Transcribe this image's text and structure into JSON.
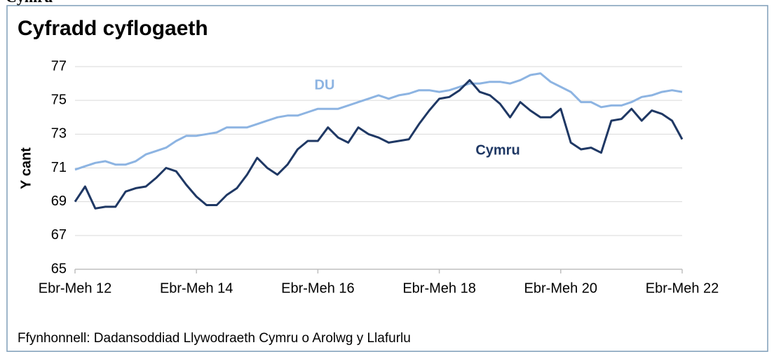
{
  "header": "Cymru",
  "chart_data": {
    "type": "line",
    "title": "Cyfradd cyflogaeth",
    "y_label": "Y cant",
    "source": "Ffynhonnell: Dadansoddiad Llywodraeth Cymru o Arolwg y Llafurlu",
    "categories": [
      "Ebr-Meh 12",
      null,
      null,
      null,
      null,
      null,
      null,
      null,
      null,
      null,
      null,
      null,
      "Ebr-Meh 14",
      null,
      null,
      null,
      null,
      null,
      null,
      null,
      null,
      null,
      null,
      null,
      "Ebr-Meh 16",
      null,
      null,
      null,
      null,
      null,
      null,
      null,
      null,
      null,
      null,
      null,
      "Ebr-Meh 18",
      null,
      null,
      null,
      null,
      null,
      null,
      null,
      null,
      null,
      null,
      null,
      "Ebr-Meh 20",
      null,
      null,
      null,
      null,
      null,
      null,
      null,
      null,
      null,
      null,
      null,
      "Ebr-Meh 22"
    ],
    "series": [
      {
        "name": "DU",
        "color": "#8db4e2",
        "values": [
          70.9,
          71.1,
          71.3,
          71.4,
          71.2,
          71.2,
          71.4,
          71.8,
          72.0,
          72.2,
          72.6,
          72.9,
          72.9,
          73.0,
          73.1,
          73.4,
          73.4,
          73.4,
          73.6,
          73.8,
          74.0,
          74.1,
          74.1,
          74.3,
          74.5,
          74.5,
          74.5,
          74.7,
          74.9,
          75.1,
          75.3,
          75.1,
          75.3,
          75.4,
          75.6,
          75.6,
          75.5,
          75.6,
          75.8,
          76.0,
          76.0,
          76.1,
          76.1,
          76.0,
          76.2,
          76.5,
          76.6,
          76.1,
          75.8,
          75.5,
          74.9,
          74.9,
          74.6,
          74.7,
          74.7,
          74.9,
          75.2,
          75.3,
          75.5,
          75.6,
          75.5
        ]
      },
      {
        "name": "Cymru",
        "color": "#1f3864",
        "values": [
          69.0,
          69.9,
          68.6,
          68.7,
          68.7,
          69.6,
          69.8,
          69.9,
          70.4,
          71.0,
          70.8,
          70.0,
          69.3,
          68.8,
          68.8,
          69.4,
          69.8,
          70.6,
          71.6,
          71.0,
          70.6,
          71.2,
          72.1,
          72.6,
          72.6,
          73.4,
          72.8,
          72.5,
          73.4,
          73.0,
          72.8,
          72.5,
          72.6,
          72.7,
          73.6,
          74.4,
          75.1,
          75.2,
          75.6,
          76.2,
          75.5,
          75.3,
          74.8,
          74.0,
          74.9,
          74.4,
          74.0,
          74.0,
          74.5,
          72.5,
          72.1,
          72.2,
          71.9,
          73.8,
          73.9,
          74.5,
          73.8,
          74.4,
          74.2,
          73.8,
          72.7
        ]
      }
    ],
    "ylim": [
      65,
      77
    ],
    "yticks": [
      65,
      67,
      69,
      71,
      73,
      75,
      77
    ],
    "grid": true,
    "legend": "inline"
  }
}
